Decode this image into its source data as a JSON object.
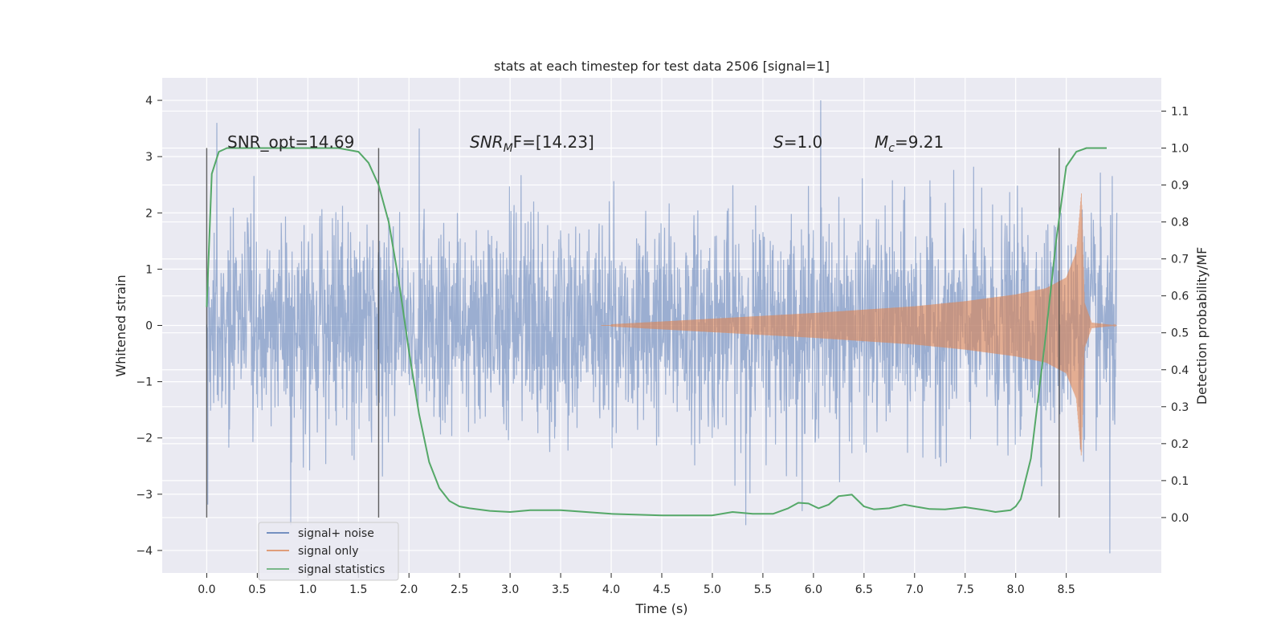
{
  "chart_data": {
    "type": "line",
    "title": "stats at each timestep for test data 2506 [signal=1]",
    "xlabel": "Time (s)",
    "ylabel": "Whitened strain",
    "y2label": "Detection probability/MF",
    "xlim": [
      -0.44,
      9.44
    ],
    "ylim": [
      -4.4,
      4.4
    ],
    "y2lim": [
      -0.15,
      1.19
    ],
    "grid": true,
    "legend_position": "lower-left",
    "x_ticks": [
      "0.0",
      "0.5",
      "1.0",
      "1.5",
      "2.0",
      "2.5",
      "3.0",
      "3.5",
      "4.0",
      "4.5",
      "5.0",
      "5.5",
      "6.0",
      "6.5",
      "7.0",
      "7.5",
      "8.0",
      "8.5"
    ],
    "y_ticks": [
      "4",
      "3",
      "2",
      "1",
      "0",
      "−1",
      "−2",
      "−3",
      "−4"
    ],
    "y2_ticks": [
      "1.1",
      "1.0",
      "0.9",
      "0.8",
      "0.7",
      "0.6",
      "0.5",
      "0.4",
      "0.3",
      "0.2",
      "0.1",
      "0.0"
    ],
    "annotations": {
      "snr_opt": "SNR_opt=14.69",
      "snr_mf_base": "SNR",
      "snr_mf_sub": "M",
      "snr_mf_rest": "F=[14.23]",
      "s_stat_base": "S",
      "s_stat_rest": "=1.0",
      "mc_base": "M",
      "mc_sub": "c",
      "mc_rest": "=9.21"
    },
    "vertical_markers": [
      0.0,
      1.7,
      8.43
    ],
    "series": [
      {
        "name": "signal+ noise",
        "color": "#4c72b0",
        "summary": "whitened noise plus signal, amplitude roughly within [-3.7, 4.0] over t = 0 to 9.0 s",
        "t_range": [
          0.0,
          9.0
        ],
        "peaks": [
          {
            "x": 0.1,
            "y": 3.6
          },
          {
            "x": 2.1,
            "y": 3.5
          },
          {
            "x": 0.83,
            "y": -3.55
          },
          {
            "x": 5.33,
            "y": -3.55
          },
          {
            "x": 6.07,
            "y": 4.0
          },
          {
            "x": 8.93,
            "y": -4.05
          }
        ]
      },
      {
        "name": "signal only",
        "color": "#dd8452",
        "summary": "chirp signal growing from ~4.0 s, envelope peaking near 8.65 s then ringdown",
        "envelope": [
          [
            4.0,
            0.02
          ],
          [
            5.0,
            0.12
          ],
          [
            6.0,
            0.22
          ],
          [
            7.0,
            0.34
          ],
          [
            7.5,
            0.43
          ],
          [
            8.0,
            0.55
          ],
          [
            8.3,
            0.66
          ],
          [
            8.5,
            0.85
          ],
          [
            8.6,
            1.3
          ],
          [
            8.65,
            2.35
          ],
          [
            8.68,
            0.4
          ],
          [
            8.75,
            0.05
          ],
          [
            9.0,
            0.0
          ]
        ]
      },
      {
        "name": "signal statistics",
        "color": "#55a868",
        "axis": "right",
        "x": [
          0.0,
          0.05,
          0.12,
          0.2,
          0.3,
          0.5,
          1.0,
          1.3,
          1.5,
          1.6,
          1.7,
          1.8,
          1.9,
          2.0,
          2.1,
          2.2,
          2.3,
          2.4,
          2.5,
          2.6,
          2.8,
          3.0,
          3.2,
          3.5,
          4.0,
          4.5,
          5.0,
          5.2,
          5.4,
          5.6,
          5.75,
          5.85,
          5.95,
          6.05,
          6.15,
          6.25,
          6.38,
          6.5,
          6.6,
          6.75,
          6.9,
          7.0,
          7.15,
          7.3,
          7.5,
          7.7,
          7.8,
          7.95,
          8.0,
          8.05,
          8.15,
          8.3,
          8.4,
          8.5,
          8.6,
          8.7,
          8.9
        ],
        "values": [
          0.57,
          0.93,
          0.99,
          1.0,
          1.0,
          1.0,
          1.0,
          1.0,
          0.99,
          0.96,
          0.9,
          0.8,
          0.64,
          0.45,
          0.28,
          0.15,
          0.08,
          0.045,
          0.03,
          0.025,
          0.018,
          0.015,
          0.02,
          0.02,
          0.01,
          0.006,
          0.006,
          0.015,
          0.01,
          0.01,
          0.025,
          0.04,
          0.038,
          0.025,
          0.035,
          0.058,
          0.062,
          0.03,
          0.022,
          0.025,
          0.035,
          0.03,
          0.023,
          0.022,
          0.028,
          0.02,
          0.015,
          0.02,
          0.03,
          0.05,
          0.16,
          0.5,
          0.75,
          0.95,
          0.99,
          1.0,
          1.0
        ]
      }
    ]
  }
}
